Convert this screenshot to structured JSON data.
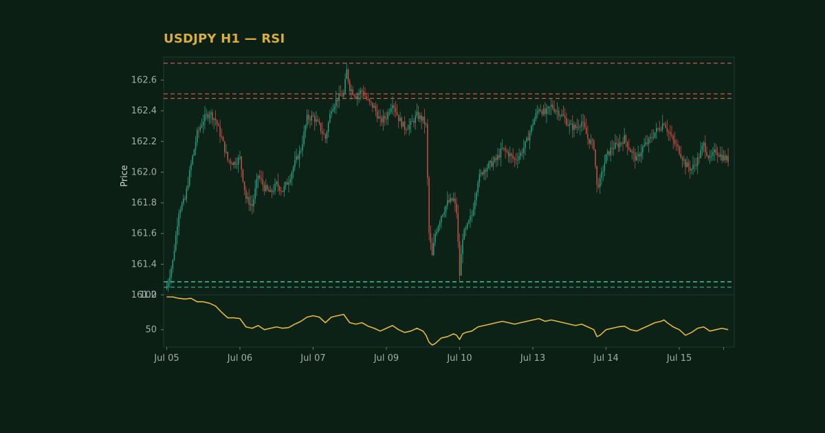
{
  "title": "USDJPY H1 — RSI",
  "colors": {
    "background": "#0b1f14",
    "panel": "#0c2216",
    "panel_border": "#1d3a34",
    "up": "#2a9d82",
    "down": "#c55046",
    "rsi": "#e8b93c",
    "title": "#d8ae3e",
    "resistance": "#c55046",
    "support": "#2a9d82"
  },
  "chart_data": [
    {
      "type": "candlestick",
      "symbol": "USDJPY",
      "timeframe": "H1",
      "ylabel": "Price",
      "ylim": [
        161.2,
        162.75
      ],
      "yticks": [
        161.2,
        161.4,
        161.6,
        161.8,
        162.0,
        162.2,
        162.4,
        162.6
      ],
      "ytick_labels": [
        "161.2",
        "161.4",
        "161.6",
        "161.8",
        "162.0",
        "162.2",
        "162.4",
        "162.6"
      ],
      "xticks": [
        "Jul 05",
        "Jul 06",
        "Jul 07",
        "Jul 09",
        "Jul 10",
        "Jul 13",
        "Jul 14",
        "Jul 15"
      ],
      "resistance_levels": [
        162.71,
        162.51,
        162.48
      ],
      "support_levels": [
        161.285,
        161.25
      ],
      "grid": false,
      "price_path": [
        [
          0,
          161.25
        ],
        [
          4,
          161.42
        ],
        [
          8,
          161.75
        ],
        [
          12,
          161.82
        ],
        [
          16,
          162.05
        ],
        [
          20,
          162.25
        ],
        [
          24,
          162.34
        ],
        [
          28,
          162.39
        ],
        [
          32,
          162.34
        ],
        [
          36,
          162.22
        ],
        [
          40,
          162.08
        ],
        [
          44,
          162.06
        ],
        [
          48,
          162.09
        ],
        [
          52,
          161.83
        ],
        [
          56,
          161.78
        ],
        [
          60,
          161.98
        ],
        [
          64,
          161.9
        ],
        [
          68,
          161.86
        ],
        [
          72,
          161.92
        ],
        [
          76,
          161.88
        ],
        [
          80,
          161.95
        ],
        [
          84,
          162.06
        ],
        [
          88,
          162.15
        ],
        [
          92,
          162.35
        ],
        [
          96,
          162.36
        ],
        [
          100,
          162.3
        ],
        [
          104,
          162.22
        ],
        [
          108,
          162.42
        ],
        [
          112,
          162.48
        ],
        [
          116,
          162.51
        ],
        [
          118,
          162.66
        ],
        [
          120,
          162.55
        ],
        [
          124,
          162.5
        ],
        [
          128,
          162.53
        ],
        [
          132,
          162.46
        ],
        [
          136,
          162.42
        ],
        [
          140,
          162.33
        ],
        [
          144,
          162.36
        ],
        [
          148,
          162.46
        ],
        [
          152,
          162.35
        ],
        [
          156,
          162.29
        ],
        [
          160,
          162.31
        ],
        [
          164,
          162.37
        ],
        [
          168,
          162.34
        ],
        [
          170,
          162.3
        ],
        [
          172,
          161.6
        ],
        [
          174,
          161.45
        ],
        [
          176,
          161.6
        ],
        [
          180,
          161.72
        ],
        [
          184,
          161.8
        ],
        [
          188,
          161.82
        ],
        [
          190,
          161.74
        ],
        [
          192,
          161.33
        ],
        [
          194,
          161.58
        ],
        [
          196,
          161.62
        ],
        [
          200,
          161.72
        ],
        [
          204,
          161.95
        ],
        [
          208,
          162.02
        ],
        [
          212,
          162.05
        ],
        [
          216,
          162.08
        ],
        [
          220,
          162.15
        ],
        [
          224,
          162.12
        ],
        [
          228,
          162.08
        ],
        [
          232,
          162.12
        ],
        [
          236,
          162.2
        ],
        [
          240,
          162.32
        ],
        [
          244,
          162.42
        ],
        [
          248,
          162.38
        ],
        [
          252,
          162.43
        ],
        [
          256,
          162.4
        ],
        [
          260,
          162.36
        ],
        [
          264,
          162.3
        ],
        [
          268,
          162.29
        ],
        [
          272,
          162.33
        ],
        [
          276,
          162.22
        ],
        [
          280,
          162.17
        ],
        [
          282,
          161.91
        ],
        [
          284,
          161.94
        ],
        [
          288,
          162.1
        ],
        [
          292,
          162.16
        ],
        [
          296,
          162.18
        ],
        [
          300,
          162.22
        ],
        [
          304,
          162.14
        ],
        [
          308,
          162.08
        ],
        [
          312,
          162.16
        ],
        [
          316,
          162.2
        ],
        [
          320,
          162.26
        ],
        [
          324,
          162.3
        ],
        [
          326,
          162.33
        ],
        [
          328,
          162.28
        ],
        [
          332,
          162.2
        ],
        [
          336,
          162.14
        ],
        [
          340,
          162.05
        ],
        [
          344,
          162.02
        ],
        [
          348,
          162.08
        ],
        [
          352,
          162.18
        ],
        [
          356,
          162.08
        ],
        [
          360,
          162.14
        ],
        [
          364,
          162.1
        ],
        [
          368,
          162.08
        ]
      ]
    },
    {
      "type": "line",
      "name": "RSI",
      "ylim": [
        25,
        100
      ],
      "yticks": [
        50,
        100
      ],
      "ytick_labels": [
        "50",
        "100"
      ],
      "points": [
        [
          0,
          97
        ],
        [
          4,
          97
        ],
        [
          8,
          95
        ],
        [
          12,
          94
        ],
        [
          16,
          95
        ],
        [
          20,
          90
        ],
        [
          24,
          90
        ],
        [
          28,
          88
        ],
        [
          32,
          84
        ],
        [
          36,
          75
        ],
        [
          40,
          67
        ],
        [
          44,
          67
        ],
        [
          48,
          66
        ],
        [
          52,
          54
        ],
        [
          56,
          52
        ],
        [
          60,
          56
        ],
        [
          64,
          50
        ],
        [
          68,
          52
        ],
        [
          72,
          54
        ],
        [
          76,
          52
        ],
        [
          80,
          53
        ],
        [
          84,
          58
        ],
        [
          88,
          62
        ],
        [
          92,
          68
        ],
        [
          96,
          70
        ],
        [
          100,
          68
        ],
        [
          104,
          60
        ],
        [
          108,
          68
        ],
        [
          112,
          70
        ],
        [
          116,
          72
        ],
        [
          118,
          66
        ],
        [
          120,
          60
        ],
        [
          124,
          58
        ],
        [
          128,
          60
        ],
        [
          132,
          55
        ],
        [
          136,
          52
        ],
        [
          140,
          48
        ],
        [
          144,
          52
        ],
        [
          148,
          56
        ],
        [
          152,
          50
        ],
        [
          156,
          46
        ],
        [
          160,
          48
        ],
        [
          164,
          52
        ],
        [
          168,
          48
        ],
        [
          170,
          42
        ],
        [
          172,
          32
        ],
        [
          174,
          28
        ],
        [
          176,
          30
        ],
        [
          180,
          38
        ],
        [
          184,
          40
        ],
        [
          188,
          44
        ],
        [
          190,
          42
        ],
        [
          192,
          36
        ],
        [
          194,
          44
        ],
        [
          196,
          46
        ],
        [
          200,
          48
        ],
        [
          204,
          54
        ],
        [
          208,
          56
        ],
        [
          212,
          58
        ],
        [
          216,
          60
        ],
        [
          220,
          62
        ],
        [
          224,
          60
        ],
        [
          228,
          58
        ],
        [
          232,
          60
        ],
        [
          236,
          62
        ],
        [
          240,
          64
        ],
        [
          244,
          66
        ],
        [
          248,
          62
        ],
        [
          252,
          64
        ],
        [
          256,
          62
        ],
        [
          260,
          60
        ],
        [
          264,
          58
        ],
        [
          268,
          56
        ],
        [
          272,
          58
        ],
        [
          276,
          54
        ],
        [
          280,
          50
        ],
        [
          282,
          40
        ],
        [
          284,
          42
        ],
        [
          288,
          50
        ],
        [
          292,
          52
        ],
        [
          296,
          54
        ],
        [
          300,
          55
        ],
        [
          304,
          50
        ],
        [
          308,
          48
        ],
        [
          312,
          52
        ],
        [
          316,
          56
        ],
        [
          320,
          60
        ],
        [
          324,
          62
        ],
        [
          326,
          64
        ],
        [
          328,
          60
        ],
        [
          332,
          54
        ],
        [
          336,
          50
        ],
        [
          340,
          42
        ],
        [
          344,
          46
        ],
        [
          348,
          52
        ],
        [
          352,
          54
        ],
        [
          356,
          48
        ],
        [
          360,
          50
        ],
        [
          364,
          52
        ],
        [
          368,
          50
        ]
      ]
    }
  ]
}
